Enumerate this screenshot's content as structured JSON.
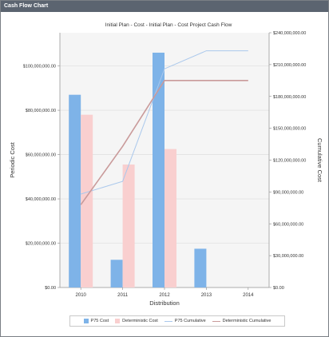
{
  "window": {
    "title": "Cash Flow Chart"
  },
  "chart_data": {
    "type": "bar",
    "title": "Initial  Plan - Cost - Initial  Plan - Cost Project Cash Flow",
    "xlabel": "Distribution",
    "ylabel": "Periodic Cost",
    "y2label": "Cumulative Cost",
    "categories": [
      "2010",
      "2011",
      "2012",
      "2013",
      "2014"
    ],
    "ylim": [
      0,
      115000000
    ],
    "y2lim": [
      0,
      240000000
    ],
    "yticks": [
      "$0.00",
      "$20,000,000.00",
      "$40,000,000.00",
      "$60,000,000.00",
      "$80,000,000.00",
      "$100,000,000.00"
    ],
    "y2ticks": [
      "$0.00",
      "$30,000,000.00",
      "$60,000,000.00",
      "$90,000,000.00",
      "$120,000,000.00",
      "$150,000,000.00",
      "$180,000,000.00",
      "$210,000,000.00",
      "$240,000,000.00"
    ],
    "series": [
      {
        "name": "P75 Cost",
        "kind": "bar",
        "axis": "left",
        "color": "#7eb3e8",
        "values": [
          87000000,
          12500000,
          106000000,
          17500000,
          0
        ]
      },
      {
        "name": "Deterministic Cost",
        "kind": "bar",
        "axis": "left",
        "color": "#f9cfcf",
        "values": [
          78000000,
          55500000,
          62500000,
          0,
          0
        ]
      },
      {
        "name": "P75 Cumulative",
        "kind": "line",
        "axis": "right",
        "color": "#aac8ec",
        "values": [
          88000000,
          100000000,
          206000000,
          223000000,
          223000000
        ]
      },
      {
        "name": "Deterministic Cumulative",
        "kind": "line",
        "axis": "right",
        "color": "#c99a9a",
        "values": [
          78000000,
          133000000,
          195000000,
          195000000,
          195000000
        ]
      }
    ],
    "grid": true,
    "legend_position": "bottom"
  }
}
